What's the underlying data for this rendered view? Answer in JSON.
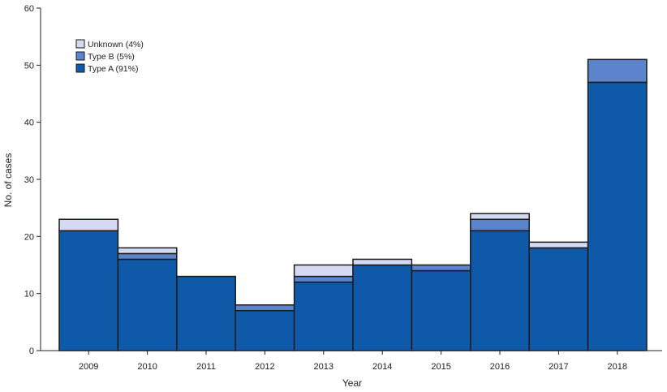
{
  "chart_data": {
    "type": "bar",
    "stacked": true,
    "title": "",
    "xlabel": "Year",
    "ylabel": "No. of cases",
    "ylim": [
      0,
      60
    ],
    "yticks": [
      0,
      10,
      20,
      30,
      40,
      50,
      60
    ],
    "grid": false,
    "legend_position": "top-left",
    "categories": [
      "2009",
      "2010",
      "2011",
      "2012",
      "2013",
      "2014",
      "2015",
      "2016",
      "2017",
      "2018"
    ],
    "series": [
      {
        "name": "Type A (91%)",
        "color": "#0f5aa8",
        "values": [
          21,
          16,
          13,
          7,
          12,
          15,
          14,
          21,
          18,
          47
        ]
      },
      {
        "name": "Type B (5%)",
        "color": "#5b84cc",
        "values": [
          0,
          1,
          0,
          1,
          1,
          0,
          1,
          2,
          0,
          4
        ]
      },
      {
        "name": "Unknown (4%)",
        "color": "#d4daf1",
        "values": [
          2,
          1,
          0,
          0,
          2,
          1,
          0,
          1,
          1,
          0
        ]
      }
    ],
    "legend_order": [
      2,
      1,
      0
    ]
  }
}
